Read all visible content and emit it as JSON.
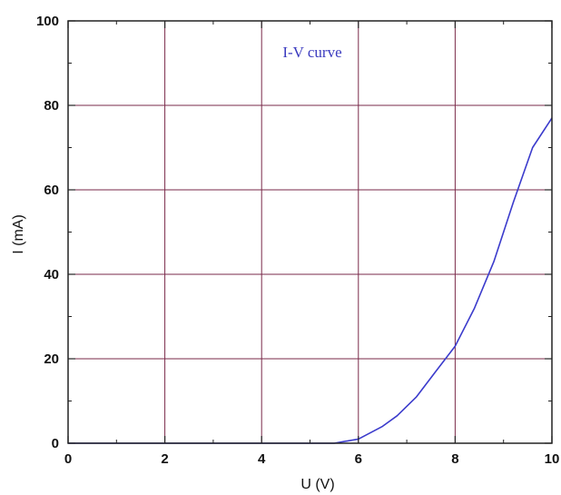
{
  "chart_data": {
    "type": "line",
    "title": "I-V curve",
    "xlabel": "U (V)",
    "ylabel": "I (mA)",
    "xlim": [
      0,
      10
    ],
    "ylim": [
      0,
      100
    ],
    "xticks": [
      "0",
      "2",
      "4",
      "6",
      "8",
      "10"
    ],
    "yticks": [
      "0",
      "20",
      "40",
      "60",
      "80",
      "100"
    ],
    "grid": true,
    "colors": {
      "line": "#3b3bcc",
      "grid": "#7a2a4a",
      "axis": "#222222"
    },
    "series": [
      {
        "x": [
          0,
          1,
          2,
          3,
          4,
          5,
          5.5,
          6,
          6.5,
          6.8,
          7.2,
          7.6,
          8,
          8.4,
          8.8,
          9.2,
          9.6,
          10
        ],
        "values": [
          0,
          0,
          0,
          0,
          0,
          0,
          0,
          1,
          4,
          6.5,
          11,
          17,
          23,
          32,
          43,
          57,
          70,
          77
        ]
      }
    ]
  }
}
